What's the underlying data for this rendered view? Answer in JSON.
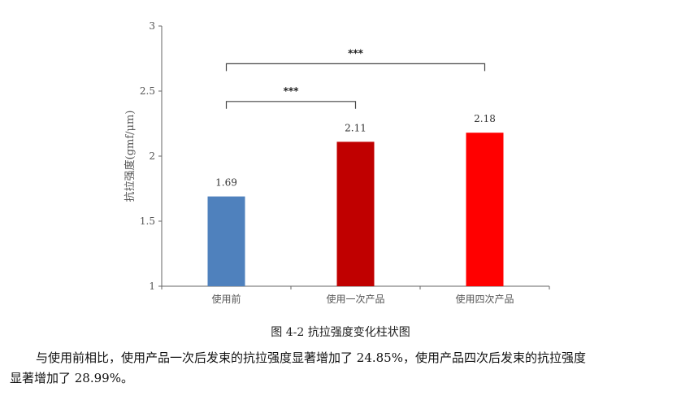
{
  "chart_data": {
    "type": "bar",
    "categories": [
      "使用前",
      "使用一次产品",
      "使用四次产品"
    ],
    "values": [
      1.69,
      2.11,
      2.18
    ],
    "data_labels": [
      "1.69",
      "2.11",
      "2.18"
    ],
    "colors": [
      "#4f81bd",
      "#c00000",
      "#ff0000"
    ],
    "ylabel": "抗拉强度(gmf/μm)",
    "ylim": [
      1,
      3
    ],
    "yticks": [
      "1",
      "1.5",
      "2",
      "2.5",
      "3"
    ],
    "grid": false,
    "significance": [
      {
        "from": 0,
        "to": 1,
        "label": "***",
        "level": 2.42
      },
      {
        "from": 0,
        "to": 2,
        "label": "***",
        "level": 2.71
      }
    ]
  },
  "caption": "图 4-2  抗拉强度变化柱状图",
  "paragraph": {
    "line1": "与使用前相比，使用产品一次后发束的抗拉强度显著增加了 24.85%，使用产品四次后发束的抗拉强度",
    "line2": "显著增加了 28.99%。"
  }
}
